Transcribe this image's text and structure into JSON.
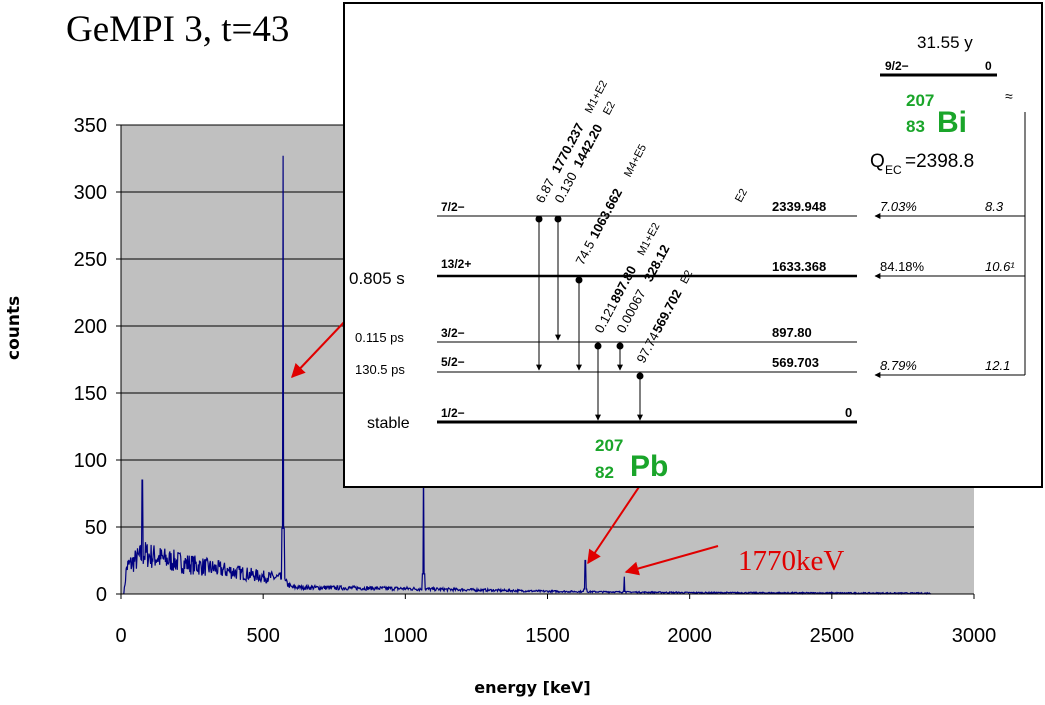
{
  "title": "GeMPI 3, t=43",
  "chart_data": {
    "type": "line",
    "xlabel": "energy [keV]",
    "ylabel": "counts",
    "xlim": [
      0,
      3000
    ],
    "ylim": [
      0,
      350
    ],
    "xticks": [
      0,
      500,
      1000,
      1500,
      2000,
      2500,
      3000
    ],
    "yticks": [
      0,
      50,
      100,
      150,
      200,
      250,
      300,
      350
    ],
    "grid": "horizontal",
    "background": "#c0c0c0",
    "series_color": "#000080",
    "series": [
      {
        "peaks": [
          {
            "x": 75,
            "y": 85
          },
          {
            "x": 570,
            "y": 327
          },
          {
            "x": 1064,
            "y": 100
          },
          {
            "x": 1633,
            "y": 25
          },
          {
            "x": 1770,
            "y": 13
          }
        ],
        "continuum": [
          {
            "x": 10,
            "y": 0
          },
          {
            "x": 20,
            "y": 20
          },
          {
            "x": 80,
            "y": 30
          },
          {
            "x": 150,
            "y": 26
          },
          {
            "x": 300,
            "y": 20
          },
          {
            "x": 500,
            "y": 13
          },
          {
            "x": 560,
            "y": 12
          },
          {
            "x": 600,
            "y": 5
          },
          {
            "x": 1000,
            "y": 4
          },
          {
            "x": 1500,
            "y": 2
          },
          {
            "x": 2000,
            "y": 1
          },
          {
            "x": 2850,
            "y": 0.5
          }
        ]
      }
    ]
  },
  "annotation": {
    "label": "1770keV",
    "color": "#e00000"
  },
  "inset": {
    "parent": {
      "halflife": "31.55 y",
      "spin": "9/2−",
      "energy": "0",
      "mass": "207",
      "z": "83",
      "symbol": "Bi",
      "qec": "Q",
      "qec_sub": "EC",
      "qec_value": "=2398.8",
      "break": "≈"
    },
    "daughter": {
      "mass": "207",
      "z": "82",
      "symbol": "Pb"
    },
    "levels": [
      {
        "lifetime": "",
        "spin": "7/2−",
        "energy": "2339.948",
        "branch": "7.03%",
        "logft": "8.3"
      },
      {
        "lifetime": "0.805 s",
        "spin": "13/2+",
        "energy": "1633.368",
        "branch": "84.18%",
        "logft": "10.6¹"
      },
      {
        "lifetime": "0.115 ps",
        "spin": "3/2−",
        "energy": "897.80",
        "branch": "",
        "logft": ""
      },
      {
        "lifetime": "130.5 ps",
        "spin": "5/2−",
        "energy": "569.703",
        "branch": "8.79%",
        "logft": "12.1"
      },
      {
        "lifetime": "stable",
        "spin": "1/2−",
        "energy": "0",
        "branch": "",
        "logft": ""
      }
    ],
    "transitions": [
      {
        "intensity": "6.87",
        "energy": "1770.237",
        "mult": "M1+E2"
      },
      {
        "intensity": "0.130",
        "energy": "1442.20",
        "mult": "E2"
      },
      {
        "intensity": "74.5",
        "energy": "1063.662",
        "mult": "M4+E5"
      },
      {
        "intensity": "0.121",
        "energy": "897.80",
        "mult": "M1+E2"
      },
      {
        "intensity": "0.00067",
        "energy": "328.12",
        "mult": "E2"
      },
      {
        "intensity": "97.74",
        "energy": "569.702",
        "mult": "E2"
      }
    ]
  }
}
